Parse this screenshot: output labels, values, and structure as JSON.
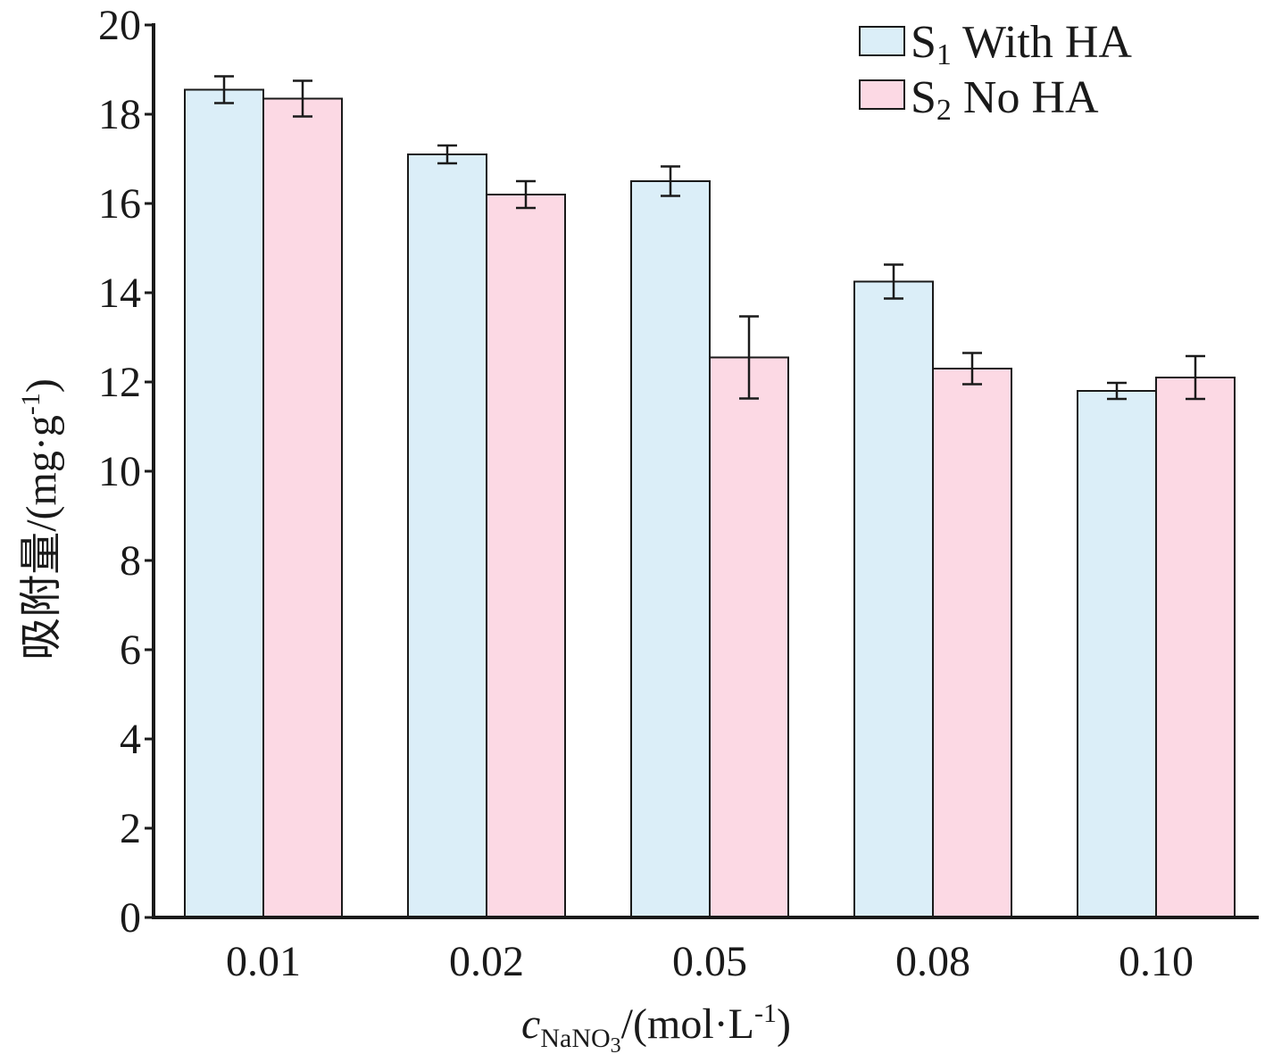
{
  "chart_data": {
    "type": "bar",
    "categories": [
      "0.01",
      "0.02",
      "0.05",
      "0.08",
      "0.10"
    ],
    "series": [
      {
        "name": "S1 With HA",
        "name_main": "S",
        "name_sub": "1",
        "name_rest": " With HA",
        "color": "#dbeef8",
        "values": [
          18.55,
          17.1,
          16.5,
          14.25,
          11.8
        ],
        "errors": [
          0.3,
          0.2,
          0.33,
          0.38,
          0.18
        ]
      },
      {
        "name": "S2 No HA",
        "name_main": "S",
        "name_sub": "2",
        "name_rest": " No HA",
        "color": "#fcd9e4",
        "values": [
          18.35,
          16.2,
          12.55,
          12.3,
          12.1
        ],
        "errors": [
          0.4,
          0.3,
          0.92,
          0.35,
          0.48
        ]
      }
    ],
    "yticks": [
      0,
      2,
      4,
      6,
      8,
      10,
      12,
      14,
      16,
      18,
      20
    ],
    "ylim": [
      0,
      20
    ],
    "ylabel": "吸附量/(mg·g-1)",
    "ylabel_main": "吸附量/(mg·g",
    "ylabel_sup": "-1",
    "ylabel_close": ")",
    "xlabel": "cNaNO3/(mol·L-1)",
    "xlabel_var": "c",
    "xlabel_sub_a": "NaNO",
    "xlabel_sub_b": "3",
    "xlabel_main": "/(mol·L",
    "xlabel_sup": "-1",
    "xlabel_close": ")",
    "grid": false,
    "legend_position": "top-right"
  }
}
